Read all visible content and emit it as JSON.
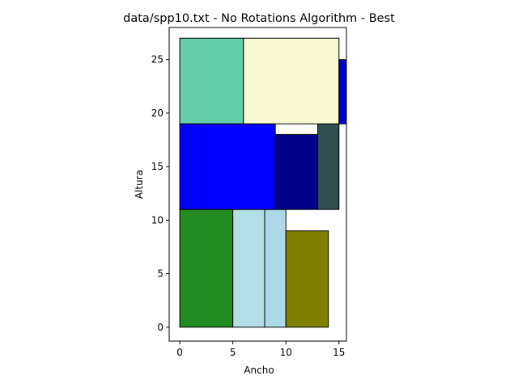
{
  "chart_data": {
    "type": "rectangle-packing",
    "title": "data/spp10.txt - No Rotations Algorithm - Best",
    "xlabel": "Ancho",
    "ylabel": "Altura",
    "xlim": [
      -1.0,
      15.7
    ],
    "ylim": [
      -1.3,
      28.0
    ],
    "xticks": [
      0,
      5,
      10,
      15
    ],
    "yticks": [
      0,
      5,
      10,
      15,
      20,
      25
    ],
    "grid": false,
    "legend": "none",
    "rectangles": [
      {
        "x": 0,
        "y": 0,
        "w": 5,
        "h": 11,
        "color": "#228b22"
      },
      {
        "x": 5,
        "y": 0,
        "w": 3,
        "h": 11,
        "color": "#b0e0e6"
      },
      {
        "x": 8,
        "y": 0,
        "w": 2,
        "h": 11,
        "color": "#add8e6"
      },
      {
        "x": 10,
        "y": 0,
        "w": 4,
        "h": 9,
        "color": "#808000"
      },
      {
        "x": 0,
        "y": 11,
        "w": 9,
        "h": 8,
        "color": "#0000ff"
      },
      {
        "x": 9,
        "y": 11,
        "w": 4,
        "h": 7,
        "color": "#00008b"
      },
      {
        "x": 13,
        "y": 11,
        "w": 2,
        "h": 8,
        "color": "#2f4f4f"
      },
      {
        "x": 0,
        "y": 19,
        "w": 6,
        "h": 8,
        "color": "#66cdaa"
      },
      {
        "x": 6,
        "y": 19,
        "w": 9,
        "h": 8,
        "color": "#fafad2"
      },
      {
        "x": 15,
        "y": 19,
        "w": 2,
        "h": 6,
        "color": "#0000cd"
      }
    ]
  }
}
